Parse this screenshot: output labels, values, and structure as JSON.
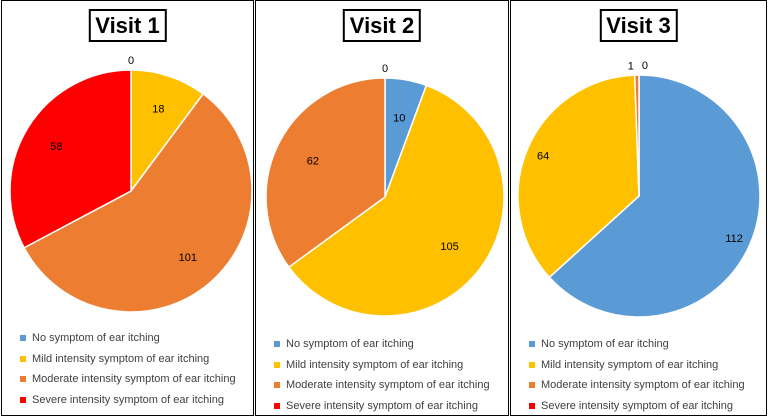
{
  "chart_data": [
    {
      "type": "pie",
      "title": "Visit 1",
      "categories": [
        "No symptom of ear itching",
        "Mild intensity symptom of ear itching",
        "Moderate intensity symptom of ear itching",
        "Severe intensity symptom of ear itching"
      ],
      "values": [
        0,
        18,
        101,
        58
      ],
      "colors": [
        "#5B9BD5",
        "#FFC000",
        "#ED7D31",
        "#FF0000"
      ],
      "legend_position": "bottom-left"
    },
    {
      "type": "pie",
      "title": "Visit 2",
      "categories": [
        "No symptom of ear itching",
        "Mild intensity symptom of ear itching",
        "Moderate intensity symptom of ear itching",
        "Severe intensity symptom of ear itching"
      ],
      "values": [
        10,
        105,
        62,
        0
      ],
      "colors": [
        "#5B9BD5",
        "#FFC000",
        "#ED7D31",
        "#FF0000"
      ],
      "legend_position": "bottom-left"
    },
    {
      "type": "pie",
      "title": "Visit 3",
      "categories": [
        "No symptom of ear itching",
        "Mild intensity symptom of ear itching",
        "Moderate intensity symptom of ear itching",
        "Severe intensity symptom of ear itching"
      ],
      "values": [
        112,
        64,
        1,
        0
      ],
      "colors": [
        "#5B9BD5",
        "#FFC000",
        "#ED7D31",
        "#FF0000"
      ],
      "legend_position": "bottom-left"
    }
  ]
}
